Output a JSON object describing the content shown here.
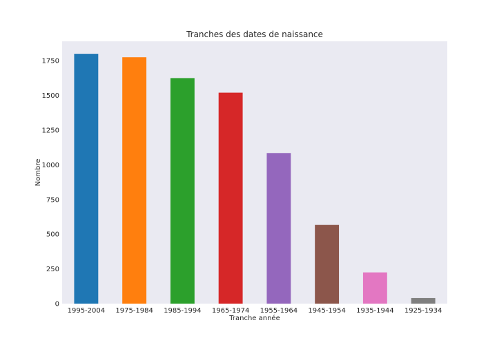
{
  "chart_data": {
    "type": "bar",
    "title": "Tranches des dates de naissance",
    "xlabel": "Tranche année",
    "ylabel": "Nombre",
    "categories": [
      "1995-2004",
      "1975-1984",
      "1985-1994",
      "1965-1974",
      "1955-1964",
      "1945-1954",
      "1935-1944",
      "1925-1934"
    ],
    "values": [
      1800,
      1775,
      1625,
      1520,
      1085,
      567,
      225,
      40
    ],
    "colors": [
      "#1f77b4",
      "#ff7f0e",
      "#2ca02c",
      "#d62728",
      "#9467bd",
      "#8c564b",
      "#e377c2",
      "#7f7f7f"
    ],
    "yticks": [
      0,
      250,
      500,
      750,
      1000,
      1250,
      1500,
      1750
    ],
    "ylim": [
      0,
      1890
    ],
    "grid": false,
    "background": "#eaeaf2"
  }
}
